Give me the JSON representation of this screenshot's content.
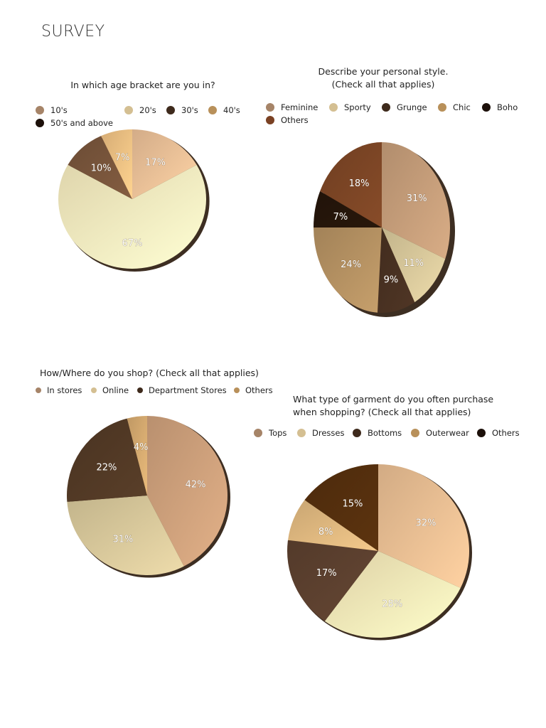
{
  "page": {
    "title": "SURVEY"
  },
  "chart_data": [
    {
      "type": "pie",
      "title": "In which age bracket are you in?",
      "categories": [
        "10's",
        "20's",
        "30's",
        "40's",
        "50's and above"
      ],
      "values": [
        17,
        67,
        10,
        7,
        0
      ],
      "labels": [
        "17%",
        "67%",
        "10%",
        "7%",
        ""
      ],
      "legend_colors": [
        "#a68468",
        "#d4bf92",
        "#3e2a1c",
        "#b8905a",
        "#1c100a"
      ],
      "slice_colors": [
        "#f0c49a",
        "#fdf2c4",
        "#7a563c",
        "#f3c485",
        "#1c100a"
      ],
      "legend_position": "top"
    },
    {
      "type": "pie",
      "title": "Describe your personal style.\n(Check all that applies)",
      "categories": [
        "Feminine",
        "Sporty",
        "Grunge",
        "Chic",
        "Boho",
        "Others"
      ],
      "values": [
        31,
        11,
        9,
        24,
        7,
        18
      ],
      "labels": [
        "31%",
        "11%",
        "9%",
        "24%",
        "7%",
        "18%"
      ],
      "legend_colors": [
        "#a68468",
        "#d4bf92",
        "#3e2a1c",
        "#b8905a",
        "#1c100a",
        "#7a4123"
      ],
      "slice_colors": [
        "#c9a07c",
        "#dccc9e",
        "#4a3222",
        "#b89464",
        "#26160a",
        "#7e4626"
      ],
      "legend_position": "top"
    },
    {
      "type": "pie",
      "title": "How/Where do you shop? (Check all that applies)",
      "categories": [
        "In stores",
        "Online",
        "Department Stores",
        "Others"
      ],
      "values": [
        42,
        31,
        22,
        4
      ],
      "labels": [
        "42%",
        "31%",
        "22%",
        "4%"
      ],
      "legend_colors": [
        "#a68468",
        "#d4bf92",
        "#3e2a1c",
        "#b8905a"
      ],
      "slice_colors": [
        "#d2a47e",
        "#dccc9e",
        "#533a26",
        "#d9ad72"
      ],
      "legend_position": "top"
    },
    {
      "type": "pie",
      "title": "What type of garment do you often purchase\nwhen shopping? (Check all that applies)",
      "categories": [
        "Tops",
        "Dresses",
        "Bottoms",
        "Outerwear",
        "Others"
      ],
      "values": [
        32,
        28,
        17,
        8,
        15
      ],
      "labels": [
        "32%",
        "28%",
        "17%",
        "8%",
        "15%"
      ],
      "legend_colors": [
        "#a68468",
        "#d4bf92",
        "#3e2a1c",
        "#b8905a",
        "#1c100a"
      ],
      "slice_colors": [
        "#efc296",
        "#fbecbc",
        "#5e4230",
        "#e3bb82",
        "#56300e"
      ],
      "legend_position": "top"
    }
  ]
}
